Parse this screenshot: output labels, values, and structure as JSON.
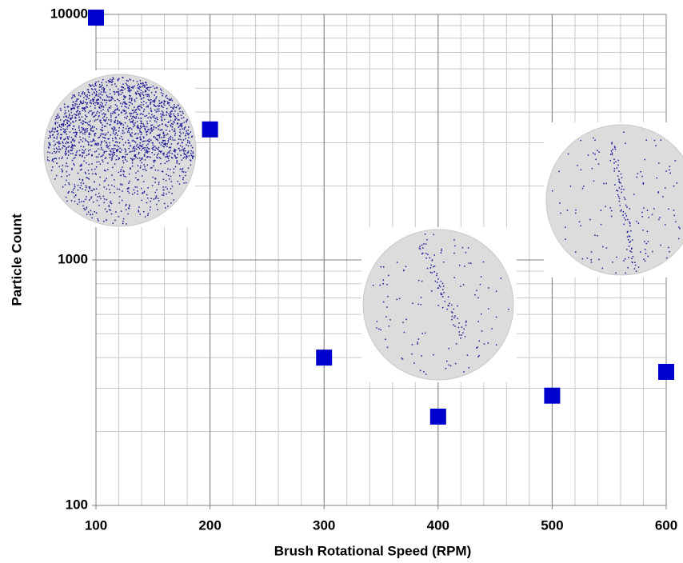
{
  "chart_data": {
    "type": "scatter",
    "x_label": "Brush Rotational Speed (RPM)",
    "y_label": "Particle Count",
    "x": [
      100,
      200,
      300,
      400,
      500,
      600
    ],
    "values": [
      9700,
      3400,
      400,
      230,
      280,
      350
    ],
    "color": "#0000cc",
    "xlim": [
      100,
      600
    ],
    "xticks": [
      100,
      200,
      300,
      400,
      500,
      600
    ],
    "ylim": [
      100,
      10000
    ],
    "yticks": [
      100,
      1000,
      10000
    ],
    "y_log_scale": true,
    "grid": true
  }
}
